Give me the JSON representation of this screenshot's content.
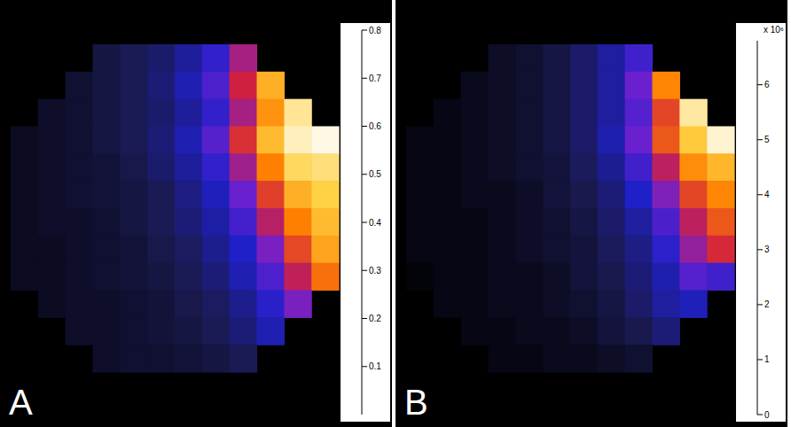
{
  "chart_data": [
    {
      "type": "heatmap",
      "panel": "A",
      "cells": [
        [
          null,
          null,
          null,
          0.08,
          0.1,
          0.12,
          0.16,
          0.22,
          0.35,
          null,
          null,
          null
        ],
        [
          null,
          null,
          0.06,
          0.08,
          0.1,
          0.13,
          0.18,
          0.25,
          0.4,
          0.6,
          null,
          null
        ],
        [
          null,
          0.05,
          0.06,
          0.08,
          0.1,
          0.12,
          0.16,
          0.22,
          0.35,
          0.55,
          0.72,
          null
        ],
        [
          0.04,
          0.05,
          0.06,
          0.08,
          0.1,
          0.13,
          0.18,
          0.26,
          0.42,
          0.62,
          0.75,
          0.78
        ],
        [
          0.04,
          0.05,
          0.06,
          0.07,
          0.09,
          0.12,
          0.16,
          0.22,
          0.34,
          0.52,
          0.68,
          0.7
        ],
        [
          0.04,
          0.05,
          0.06,
          0.07,
          0.08,
          0.1,
          0.14,
          0.19,
          0.28,
          0.44,
          0.6,
          0.66
        ],
        [
          0.04,
          0.05,
          0.05,
          0.06,
          0.08,
          0.1,
          0.13,
          0.17,
          0.24,
          0.37,
          0.52,
          0.62
        ],
        [
          0.04,
          0.04,
          0.05,
          0.06,
          0.07,
          0.09,
          0.11,
          0.15,
          0.2,
          0.3,
          0.45,
          0.58
        ],
        [
          0.04,
          0.04,
          0.05,
          0.06,
          0.07,
          0.08,
          0.1,
          0.13,
          0.18,
          0.25,
          0.38,
          0.5
        ],
        [
          null,
          0.04,
          0.05,
          0.05,
          0.06,
          0.07,
          0.09,
          0.11,
          0.15,
          0.21,
          0.3,
          null
        ],
        [
          null,
          null,
          0.05,
          0.05,
          0.06,
          0.07,
          0.08,
          0.1,
          0.13,
          0.18,
          null,
          null
        ],
        [
          null,
          null,
          null,
          0.05,
          0.06,
          0.06,
          0.07,
          0.08,
          0.1,
          null,
          null,
          null
        ]
      ],
      "colorbar": {
        "range": [
          0,
          0.8
        ],
        "ticks": [
          0.1,
          0.2,
          0.3,
          0.4,
          0.5,
          0.6,
          0.7,
          0.8
        ]
      }
    },
    {
      "type": "heatmap",
      "panel": "B",
      "cells": [
        [
          null,
          null,
          null,
          0.4,
          0.5,
          0.7,
          1.0,
          1.4,
          2.0,
          null,
          null,
          null
        ],
        [
          null,
          null,
          0.3,
          0.4,
          0.5,
          0.7,
          1.0,
          1.4,
          2.4,
          4.5,
          null,
          null
        ],
        [
          null,
          0.2,
          0.3,
          0.4,
          0.5,
          0.7,
          1.0,
          1.4,
          2.2,
          3.8,
          6.2,
          null
        ],
        [
          0.2,
          0.2,
          0.3,
          0.4,
          0.5,
          0.7,
          1.0,
          1.5,
          2.4,
          4.0,
          5.5,
          6.5
        ],
        [
          0.2,
          0.2,
          0.3,
          0.4,
          0.5,
          0.6,
          0.9,
          1.3,
          2.0,
          3.2,
          4.6,
          5.2
        ],
        [
          0.2,
          0.2,
          0.3,
          0.3,
          0.4,
          0.6,
          0.8,
          1.1,
          1.7,
          2.6,
          3.8,
          4.5
        ],
        [
          0.2,
          0.2,
          0.2,
          0.3,
          0.4,
          0.5,
          0.7,
          1.0,
          1.4,
          2.1,
          3.2,
          4.0
        ],
        [
          0.2,
          0.2,
          0.2,
          0.3,
          0.4,
          0.5,
          0.6,
          0.9,
          1.2,
          1.8,
          2.8,
          3.5
        ],
        [
          0.1,
          0.2,
          0.2,
          0.3,
          0.3,
          0.4,
          0.6,
          0.8,
          1.1,
          1.5,
          2.2,
          2.0
        ],
        [
          null,
          0.2,
          0.2,
          0.3,
          0.3,
          0.4,
          0.5,
          0.7,
          1.0,
          1.4,
          1.6,
          null
        ],
        [
          null,
          null,
          0.2,
          0.2,
          0.3,
          0.3,
          0.4,
          0.6,
          0.8,
          1.1,
          null,
          null
        ],
        [
          null,
          null,
          null,
          0.2,
          0.2,
          0.3,
          0.3,
          0.4,
          0.5,
          null,
          null,
          null
        ]
      ],
      "colorbar": {
        "range": [
          0,
          6.8
        ],
        "ticks": [
          0,
          1,
          2,
          3,
          4,
          5,
          6
        ],
        "label": "x 10⁶"
      }
    }
  ]
}
